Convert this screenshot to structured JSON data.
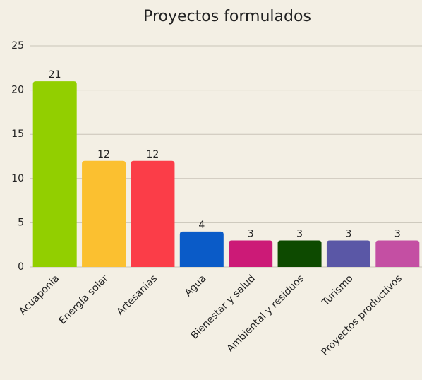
{
  "chart_data": {
    "type": "bar",
    "title": "Proyectos formulados",
    "categories": [
      "Acuaponia",
      "Energía solar",
      "Artesanias",
      "Agua",
      "Bienestar y salud",
      "Ambiental y residuos",
      "Turismo",
      "Proyectos productivos"
    ],
    "values": [
      21,
      12,
      12,
      4,
      3,
      3,
      3,
      3
    ],
    "colors": [
      "#92cf00",
      "#fbc030",
      "#fb3d48",
      "#0a5bc8",
      "#cc1a77",
      "#0d4a00",
      "#5a57a6",
      "#c44fa3"
    ],
    "ylim": [
      0,
      25
    ],
    "yticks": [
      0,
      5,
      10,
      15,
      20,
      25
    ],
    "grid": true
  }
}
